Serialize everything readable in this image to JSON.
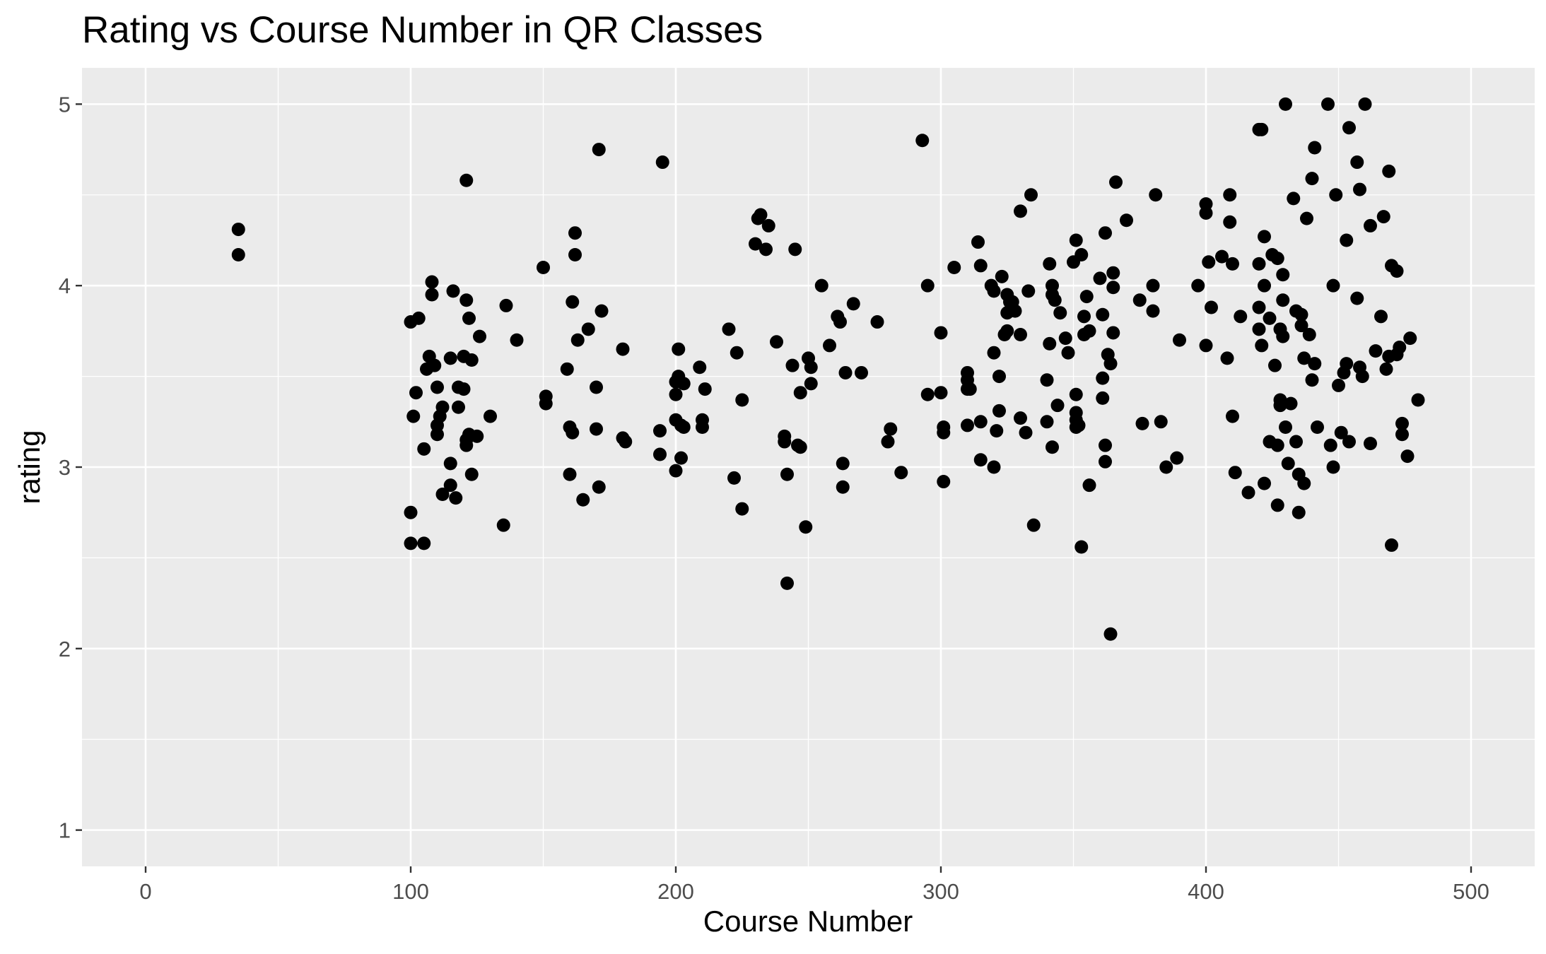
{
  "chart_data": {
    "type": "scatter",
    "title": "Rating vs Course Number in QR Classes",
    "xlabel": "Course Number",
    "ylabel": "rating",
    "xlim": [
      -24,
      524
    ],
    "ylim": [
      0.8,
      5.2
    ],
    "x_ticks": [
      0,
      100,
      200,
      300,
      400,
      500
    ],
    "y_ticks": [
      1,
      2,
      3,
      4,
      5
    ],
    "x_tick_labels": [
      "0",
      "100",
      "200",
      "300",
      "400",
      "500"
    ],
    "y_tick_labels": [
      "1",
      "2",
      "3",
      "4",
      "5"
    ],
    "grid": true,
    "legend": "none",
    "colors": {
      "panel": "#ebebeb",
      "grid": "#ffffff",
      "point": "#000000"
    },
    "points": [
      [
        35,
        4.31
      ],
      [
        35,
        4.17
      ],
      [
        100,
        3.8
      ],
      [
        101,
        3.28
      ],
      [
        102,
        3.41
      ],
      [
        103,
        3.82
      ],
      [
        100,
        2.75
      ],
      [
        100,
        2.58
      ],
      [
        105,
        2.58
      ],
      [
        105,
        3.1
      ],
      [
        106,
        3.54
      ],
      [
        107,
        3.61
      ],
      [
        108,
        4.02
      ],
      [
        108,
        3.95
      ],
      [
        109,
        3.56
      ],
      [
        110,
        3.44
      ],
      [
        110,
        3.23
      ],
      [
        110,
        3.18
      ],
      [
        111,
        3.28
      ],
      [
        112,
        3.33
      ],
      [
        112,
        2.85
      ],
      [
        115,
        2.9
      ],
      [
        115,
        3.02
      ],
      [
        115,
        3.6
      ],
      [
        116,
        3.97
      ],
      [
        117,
        2.83
      ],
      [
        118,
        3.44
      ],
      [
        118,
        3.33
      ],
      [
        120,
        3.61
      ],
      [
        120,
        3.43
      ],
      [
        121,
        4.58
      ],
      [
        121,
        3.92
      ],
      [
        121,
        3.15
      ],
      [
        121,
        3.12
      ],
      [
        122,
        3.82
      ],
      [
        122,
        3.18
      ],
      [
        123,
        2.96
      ],
      [
        123,
        3.59
      ],
      [
        125,
        3.17
      ],
      [
        126,
        3.72
      ],
      [
        130,
        3.28
      ],
      [
        135,
        2.68
      ],
      [
        136,
        3.89
      ],
      [
        140,
        3.7
      ],
      [
        150,
        4.1
      ],
      [
        151,
        3.39
      ],
      [
        151,
        3.35
      ],
      [
        159,
        3.54
      ],
      [
        160,
        2.96
      ],
      [
        160,
        3.22
      ],
      [
        161,
        3.19
      ],
      [
        161,
        3.91
      ],
      [
        162,
        4.17
      ],
      [
        162,
        4.29
      ],
      [
        163,
        3.7
      ],
      [
        165,
        2.82
      ],
      [
        167,
        3.76
      ],
      [
        170,
        3.44
      ],
      [
        170,
        3.21
      ],
      [
        171,
        4.75
      ],
      [
        171,
        2.89
      ],
      [
        172,
        3.86
      ],
      [
        180,
        3.65
      ],
      [
        180,
        3.16
      ],
      [
        181,
        3.14
      ],
      [
        194,
        3.2
      ],
      [
        194,
        3.07
      ],
      [
        195,
        4.68
      ],
      [
        200,
        3.4
      ],
      [
        200,
        3.47
      ],
      [
        200,
        3.26
      ],
      [
        200,
        2.98
      ],
      [
        201,
        3.65
      ],
      [
        201,
        3.5
      ],
      [
        202,
        3.23
      ],
      [
        202,
        3.05
      ],
      [
        203,
        3.46
      ],
      [
        203,
        3.22
      ],
      [
        209,
        3.55
      ],
      [
        210,
        3.26
      ],
      [
        210,
        3.22
      ],
      [
        211,
        3.43
      ],
      [
        220,
        3.76
      ],
      [
        222,
        2.94
      ],
      [
        223,
        3.63
      ],
      [
        225,
        3.37
      ],
      [
        225,
        2.77
      ],
      [
        230,
        4.23
      ],
      [
        231,
        4.37
      ],
      [
        232,
        4.39
      ],
      [
        234,
        4.2
      ],
      [
        235,
        4.33
      ],
      [
        238,
        3.69
      ],
      [
        241,
        3.17
      ],
      [
        241,
        3.14
      ],
      [
        242,
        2.96
      ],
      [
        242,
        2.36
      ],
      [
        244,
        3.56
      ],
      [
        245,
        4.2
      ],
      [
        246,
        3.12
      ],
      [
        247,
        3.11
      ],
      [
        247,
        3.41
      ],
      [
        249,
        2.67
      ],
      [
        250,
        3.6
      ],
      [
        251,
        3.55
      ],
      [
        251,
        3.46
      ],
      [
        255,
        4.0
      ],
      [
        258,
        3.67
      ],
      [
        261,
        3.83
      ],
      [
        262,
        3.8
      ],
      [
        263,
        3.02
      ],
      [
        263,
        2.89
      ],
      [
        264,
        3.52
      ],
      [
        267,
        3.9
      ],
      [
        270,
        3.52
      ],
      [
        276,
        3.8
      ],
      [
        280,
        3.14
      ],
      [
        281,
        3.21
      ],
      [
        285,
        2.97
      ],
      [
        293,
        4.8
      ],
      [
        295,
        3.4
      ],
      [
        295,
        4.0
      ],
      [
        300,
        3.74
      ],
      [
        300,
        3.41
      ],
      [
        301,
        3.22
      ],
      [
        301,
        3.19
      ],
      [
        301,
        2.92
      ],
      [
        305,
        4.1
      ],
      [
        310,
        3.52
      ],
      [
        310,
        3.48
      ],
      [
        310,
        3.43
      ],
      [
        310,
        3.23
      ],
      [
        311,
        3.43
      ],
      [
        314,
        4.24
      ],
      [
        315,
        4.11
      ],
      [
        315,
        3.25
      ],
      [
        315,
        3.04
      ],
      [
        319,
        4.0
      ],
      [
        320,
        3.97
      ],
      [
        320,
        3.63
      ],
      [
        320,
        3.0
      ],
      [
        321,
        3.2
      ],
      [
        322,
        3.31
      ],
      [
        322,
        3.5
      ],
      [
        323,
        4.05
      ],
      [
        324,
        3.73
      ],
      [
        325,
        3.95
      ],
      [
        325,
        3.85
      ],
      [
        325,
        3.75
      ],
      [
        326,
        3.91
      ],
      [
        327,
        3.91
      ],
      [
        328,
        3.86
      ],
      [
        330,
        4.41
      ],
      [
        330,
        3.73
      ],
      [
        330,
        3.27
      ],
      [
        332,
        3.19
      ],
      [
        333,
        3.97
      ],
      [
        334,
        4.5
      ],
      [
        335,
        2.68
      ],
      [
        340,
        3.48
      ],
      [
        340,
        3.25
      ],
      [
        341,
        4.12
      ],
      [
        341,
        3.68
      ],
      [
        342,
        4.0
      ],
      [
        342,
        3.95
      ],
      [
        342,
        3.11
      ],
      [
        343,
        3.92
      ],
      [
        344,
        3.34
      ],
      [
        345,
        3.85
      ],
      [
        347,
        3.71
      ],
      [
        348,
        3.63
      ],
      [
        350,
        4.13
      ],
      [
        351,
        4.25
      ],
      [
        351,
        3.4
      ],
      [
        351,
        3.3
      ],
      [
        351,
        3.26
      ],
      [
        351,
        3.22
      ],
      [
        352,
        3.23
      ],
      [
        353,
        2.56
      ],
      [
        353,
        4.17
      ],
      [
        354,
        3.73
      ],
      [
        354,
        3.83
      ],
      [
        355,
        3.94
      ],
      [
        356,
        3.75
      ],
      [
        356,
        2.9
      ],
      [
        360,
        4.04
      ],
      [
        361,
        3.84
      ],
      [
        361,
        3.49
      ],
      [
        361,
        3.38
      ],
      [
        362,
        3.12
      ],
      [
        362,
        3.03
      ],
      [
        362,
        4.29
      ],
      [
        363,
        3.62
      ],
      [
        364,
        3.57
      ],
      [
        364,
        2.08
      ],
      [
        365,
        4.07
      ],
      [
        365,
        3.99
      ],
      [
        365,
        3.74
      ],
      [
        366,
        4.57
      ],
      [
        370,
        4.36
      ],
      [
        375,
        3.92
      ],
      [
        376,
        3.24
      ],
      [
        380,
        4.0
      ],
      [
        380,
        3.86
      ],
      [
        381,
        4.5
      ],
      [
        383,
        3.25
      ],
      [
        385,
        3.0
      ],
      [
        389,
        3.05
      ],
      [
        390,
        3.7
      ],
      [
        397,
        4.0
      ],
      [
        400,
        4.45
      ],
      [
        400,
        4.4
      ],
      [
        400,
        3.67
      ],
      [
        401,
        4.13
      ],
      [
        402,
        3.88
      ],
      [
        406,
        4.16
      ],
      [
        408,
        3.6
      ],
      [
        409,
        4.5
      ],
      [
        409,
        4.35
      ],
      [
        410,
        4.12
      ],
      [
        410,
        3.28
      ],
      [
        411,
        2.97
      ],
      [
        413,
        3.83
      ],
      [
        416,
        2.86
      ],
      [
        420,
        4.86
      ],
      [
        420,
        4.12
      ],
      [
        420,
        3.88
      ],
      [
        420,
        3.76
      ],
      [
        421,
        4.86
      ],
      [
        421,
        3.67
      ],
      [
        422,
        4.27
      ],
      [
        422,
        4.0
      ],
      [
        422,
        2.91
      ],
      [
        424,
        3.82
      ],
      [
        424,
        3.14
      ],
      [
        425,
        4.17
      ],
      [
        426,
        3.56
      ],
      [
        427,
        4.15
      ],
      [
        427,
        3.12
      ],
      [
        427,
        2.79
      ],
      [
        428,
        3.76
      ],
      [
        428,
        3.37
      ],
      [
        428,
        3.34
      ],
      [
        429,
        3.92
      ],
      [
        429,
        3.72
      ],
      [
        429,
        4.06
      ],
      [
        430,
        5.0
      ],
      [
        430,
        3.22
      ],
      [
        431,
        3.02
      ],
      [
        432,
        3.35
      ],
      [
        433,
        4.48
      ],
      [
        434,
        3.86
      ],
      [
        434,
        3.14
      ],
      [
        435,
        2.96
      ],
      [
        435,
        2.75
      ],
      [
        436,
        3.84
      ],
      [
        436,
        3.78
      ],
      [
        437,
        3.6
      ],
      [
        437,
        2.91
      ],
      [
        438,
        4.37
      ],
      [
        439,
        3.73
      ],
      [
        440,
        4.59
      ],
      [
        440,
        3.48
      ],
      [
        441,
        4.76
      ],
      [
        441,
        3.57
      ],
      [
        442,
        3.22
      ],
      [
        446,
        5.0
      ],
      [
        447,
        3.12
      ],
      [
        448,
        4.0
      ],
      [
        448,
        3.0
      ],
      [
        449,
        4.5
      ],
      [
        450,
        3.45
      ],
      [
        451,
        3.19
      ],
      [
        452,
        3.52
      ],
      [
        453,
        4.25
      ],
      [
        453,
        3.57
      ],
      [
        454,
        4.87
      ],
      [
        454,
        3.14
      ],
      [
        457,
        4.68
      ],
      [
        457,
        3.93
      ],
      [
        458,
        4.53
      ],
      [
        458,
        3.55
      ],
      [
        459,
        3.5
      ],
      [
        460,
        5.0
      ],
      [
        462,
        4.33
      ],
      [
        462,
        3.13
      ],
      [
        464,
        3.64
      ],
      [
        466,
        3.83
      ],
      [
        467,
        4.38
      ],
      [
        468,
        3.54
      ],
      [
        469,
        4.63
      ],
      [
        469,
        3.61
      ],
      [
        470,
        4.11
      ],
      [
        470,
        2.57
      ],
      [
        472,
        3.62
      ],
      [
        472,
        4.08
      ],
      [
        473,
        3.66
      ],
      [
        474,
        3.24
      ],
      [
        474,
        3.18
      ],
      [
        476,
        3.06
      ],
      [
        477,
        3.71
      ],
      [
        480,
        3.37
      ]
    ]
  }
}
